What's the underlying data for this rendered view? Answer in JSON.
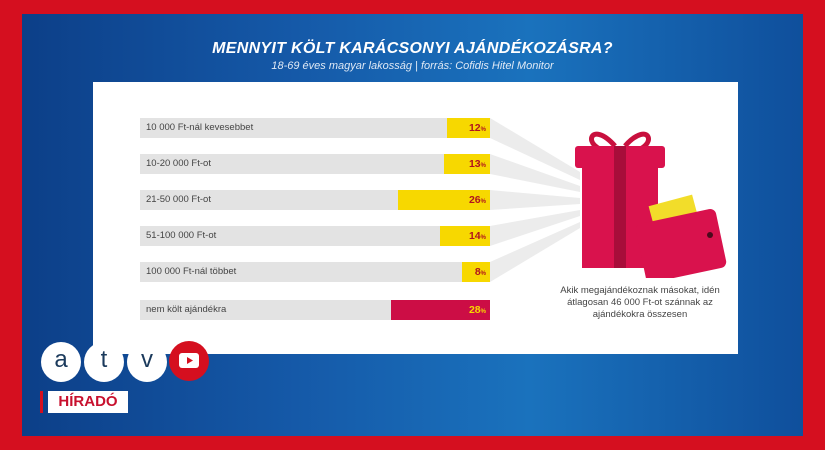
{
  "chart_data": {
    "type": "bar",
    "orientation": "horizontal",
    "title": "MENNYIT KÖLT KARÁCSONYI AJÁNDÉKOZÁSRA?",
    "subtitle": "18-69 éves magyar lakosság  |  forrás: Cofidis Hitel Monitor",
    "categories": [
      "10 000 Ft-nál kevesebbet",
      "10-20 000 Ft-ot",
      "21-50 000 Ft-ot",
      "51-100 000 Ft-ot",
      "100 000 Ft-nál többet",
      "nem költ ajándékra"
    ],
    "values": [
      12,
      13,
      26,
      14,
      8,
      28
    ],
    "unit": "%",
    "colors": [
      "#f7d800",
      "#f7d800",
      "#f7d800",
      "#f7d800",
      "#f7d800",
      "#cc0d45"
    ],
    "value_colors": [
      "#b0141e",
      "#b0141e",
      "#b0141e",
      "#b0141e",
      "#b0141e",
      "#f7d800"
    ],
    "track_color": "#e3e3e3"
  },
  "note": "Akik megajándékoznak másokat, idén átlagosan 46 000 Ft-ot szánnak az ajándékokra összesen",
  "icons": [
    "gift-icon",
    "wallet-icon"
  ],
  "broadcast": {
    "logo_letters": [
      "a",
      "t",
      "v"
    ],
    "show_label": "HÍRADÓ",
    "brand_color": "#d50f1f"
  }
}
